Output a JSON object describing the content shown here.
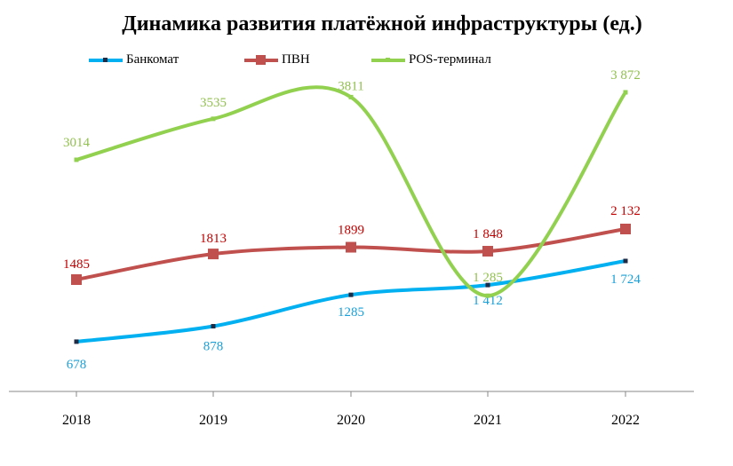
{
  "chart_data": {
    "type": "line",
    "title": "Динамика развития платёжной инфраструктуры (ед.)",
    "categories": [
      "2018",
      "2019",
      "2020",
      "2021",
      "2022"
    ],
    "series": [
      {
        "name": "Банкомат",
        "color": "#00b0f0",
        "values": [
          678,
          878,
          1285,
          1412,
          1724
        ],
        "labels": [
          "678",
          "878",
          "1285",
          "1 412",
          "1 724"
        ],
        "label_color": "#1aa0d8"
      },
      {
        "name": "ПВН",
        "color": "#c0504d",
        "values": [
          1485,
          1813,
          1899,
          1848,
          2132
        ],
        "labels": [
          "1485",
          "1813",
          "1899",
          "1 848",
          "2 132"
        ],
        "label_color": "#c00000"
      },
      {
        "name": "POS-терминал",
        "color": "#92d050",
        "values": [
          3014,
          3535,
          3811,
          1285,
          3872
        ],
        "labels": [
          "3014",
          "3535",
          "3811",
          "1 285",
          "3 872"
        ],
        "label_color": "#92c050"
      }
    ],
    "legend_position": "top-left",
    "grid": false
  }
}
